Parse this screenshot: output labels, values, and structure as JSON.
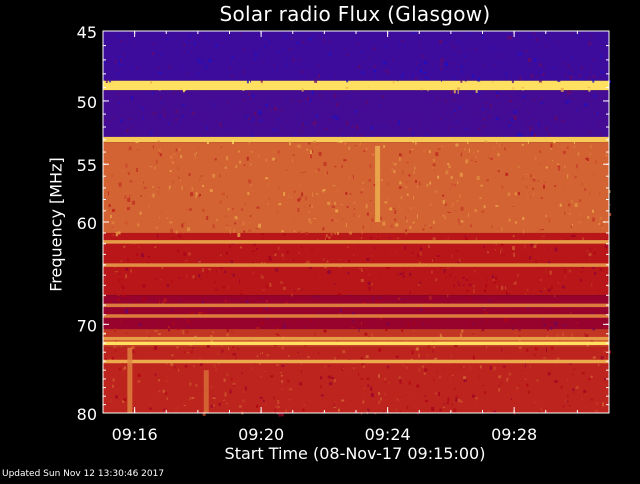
{
  "chart_data": {
    "type": "heatmap",
    "title": "Solar radio Flux (Glasgow)",
    "xlabel": "Start Time (08-Nov-17 09:15:00)",
    "ylabel": "Frequency [MHz]",
    "y_scale": "log",
    "ylim": [
      80,
      45
    ],
    "yticks": [
      45,
      50,
      55,
      60,
      70,
      80
    ],
    "xlim": [
      "09:15:00",
      "09:31:00"
    ],
    "xticks": [
      "09:16",
      "09:20",
      "09:24",
      "09:28"
    ],
    "bands": [
      {
        "from": 45.0,
        "to": 48.5,
        "level": 0.12
      },
      {
        "from": 48.5,
        "to": 49.2,
        "level": 1.0
      },
      {
        "from": 49.2,
        "to": 52.8,
        "level": 0.14
      },
      {
        "from": 52.8,
        "to": 53.2,
        "level": 0.95
      },
      {
        "from": 53.2,
        "to": 61.0,
        "level": 0.72
      },
      {
        "from": 61.0,
        "to": 67.0,
        "level": 0.55
      },
      {
        "from": 67.0,
        "to": 70.5,
        "level": 0.42
      },
      {
        "from": 70.5,
        "to": 72.5,
        "level": 0.62
      },
      {
        "from": 72.5,
        "to": 80.0,
        "level": 0.58
      }
    ],
    "lines": [
      {
        "freq": 48.8,
        "level": 1.0
      },
      {
        "freq": 52.9,
        "level": 0.95
      },
      {
        "freq": 61.8,
        "level": 0.85
      },
      {
        "freq": 64.0,
        "level": 0.82
      },
      {
        "freq": 68.0,
        "level": 0.78
      },
      {
        "freq": 69.1,
        "level": 0.78
      },
      {
        "freq": 71.5,
        "level": 0.85
      },
      {
        "freq": 72.0,
        "level": 1.0
      },
      {
        "freq": 74.0,
        "level": 0.88
      }
    ],
    "features": [
      {
        "time": "09:23:40",
        "freq_from": 53.5,
        "freq_to": 60.0,
        "level": 0.9
      },
      {
        "time": "09:15:50",
        "freq_from": 72.5,
        "freq_to": 80.0,
        "level": 0.8
      },
      {
        "time": "09:18:15",
        "freq_from": 75.0,
        "freq_to": 80.0,
        "level": 0.75
      }
    ],
    "colors": {
      "low": "#1a10c8",
      "mid": "#b00010",
      "high": "#ffe060",
      "background": "#000000"
    }
  },
  "footer": {
    "updated": "Updated Sun Nov 12 13:30:46 2017"
  }
}
